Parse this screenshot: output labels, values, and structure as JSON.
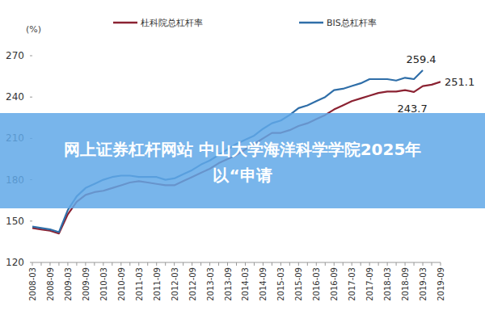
{
  "chart_data": {
    "type": "line",
    "y_label": "(%)",
    "categories": [
      "2008-03",
      null,
      "2008-09",
      null,
      "2009-03",
      null,
      "2009-09",
      null,
      "2010-03",
      null,
      "2010-09",
      null,
      "2011-03",
      null,
      "2011-09",
      null,
      "2012-03",
      null,
      "2012-09",
      null,
      "2013-03",
      null,
      "2013-09",
      null,
      "2014-03",
      null,
      "2014-09",
      null,
      "2015-03",
      null,
      "2015-09",
      null,
      "2016-03",
      null,
      "2016-09",
      null,
      "2017-03",
      null,
      "2017-09",
      null,
      "2018-03",
      null,
      "2018-09",
      null,
      "2019-03",
      null,
      "2019-09"
    ],
    "series": [
      {
        "name": "杜科院总杠杆率",
        "color": "#8b2232",
        "values": [
          145,
          144,
          143,
          141,
          155,
          164,
          169,
          171,
          172,
          174,
          176,
          178,
          179,
          178,
          177,
          176,
          176,
          179,
          182,
          185,
          188,
          192,
          195,
          198,
          202,
          206,
          210,
          214,
          214,
          216,
          219,
          221,
          224,
          227,
          231,
          234,
          237,
          239,
          241,
          243,
          244,
          244,
          245,
          243.7,
          248,
          249,
          251.1
        ]
      },
      {
        "name": "BIS总杠杆率",
        "color": "#2f6ea8",
        "values": [
          146,
          145,
          144,
          142,
          158,
          168,
          174,
          177,
          180,
          182,
          183,
          183,
          182,
          182,
          182,
          180,
          181,
          184,
          187,
          191,
          194,
          198,
          202,
          206,
          209,
          212,
          217,
          221,
          223,
          227,
          232,
          234,
          237,
          240,
          245,
          246,
          248,
          250,
          253,
          253,
          253,
          252,
          254,
          253,
          259.4,
          null,
          null
        ]
      }
    ],
    "annotations": [
      {
        "text": "259.4"
      },
      {
        "text": "251.1"
      },
      {
        "text": "243.7"
      }
    ],
    "ylim": [
      120,
      270
    ],
    "yticks": [
      120,
      150,
      180,
      210,
      240,
      270
    ],
    "grid": false,
    "legend": "top"
  },
  "overlay": {
    "lines": [
      "网上证券杠杆网站 中山大学海洋科学学院2025年",
      "以“申请"
    ]
  }
}
